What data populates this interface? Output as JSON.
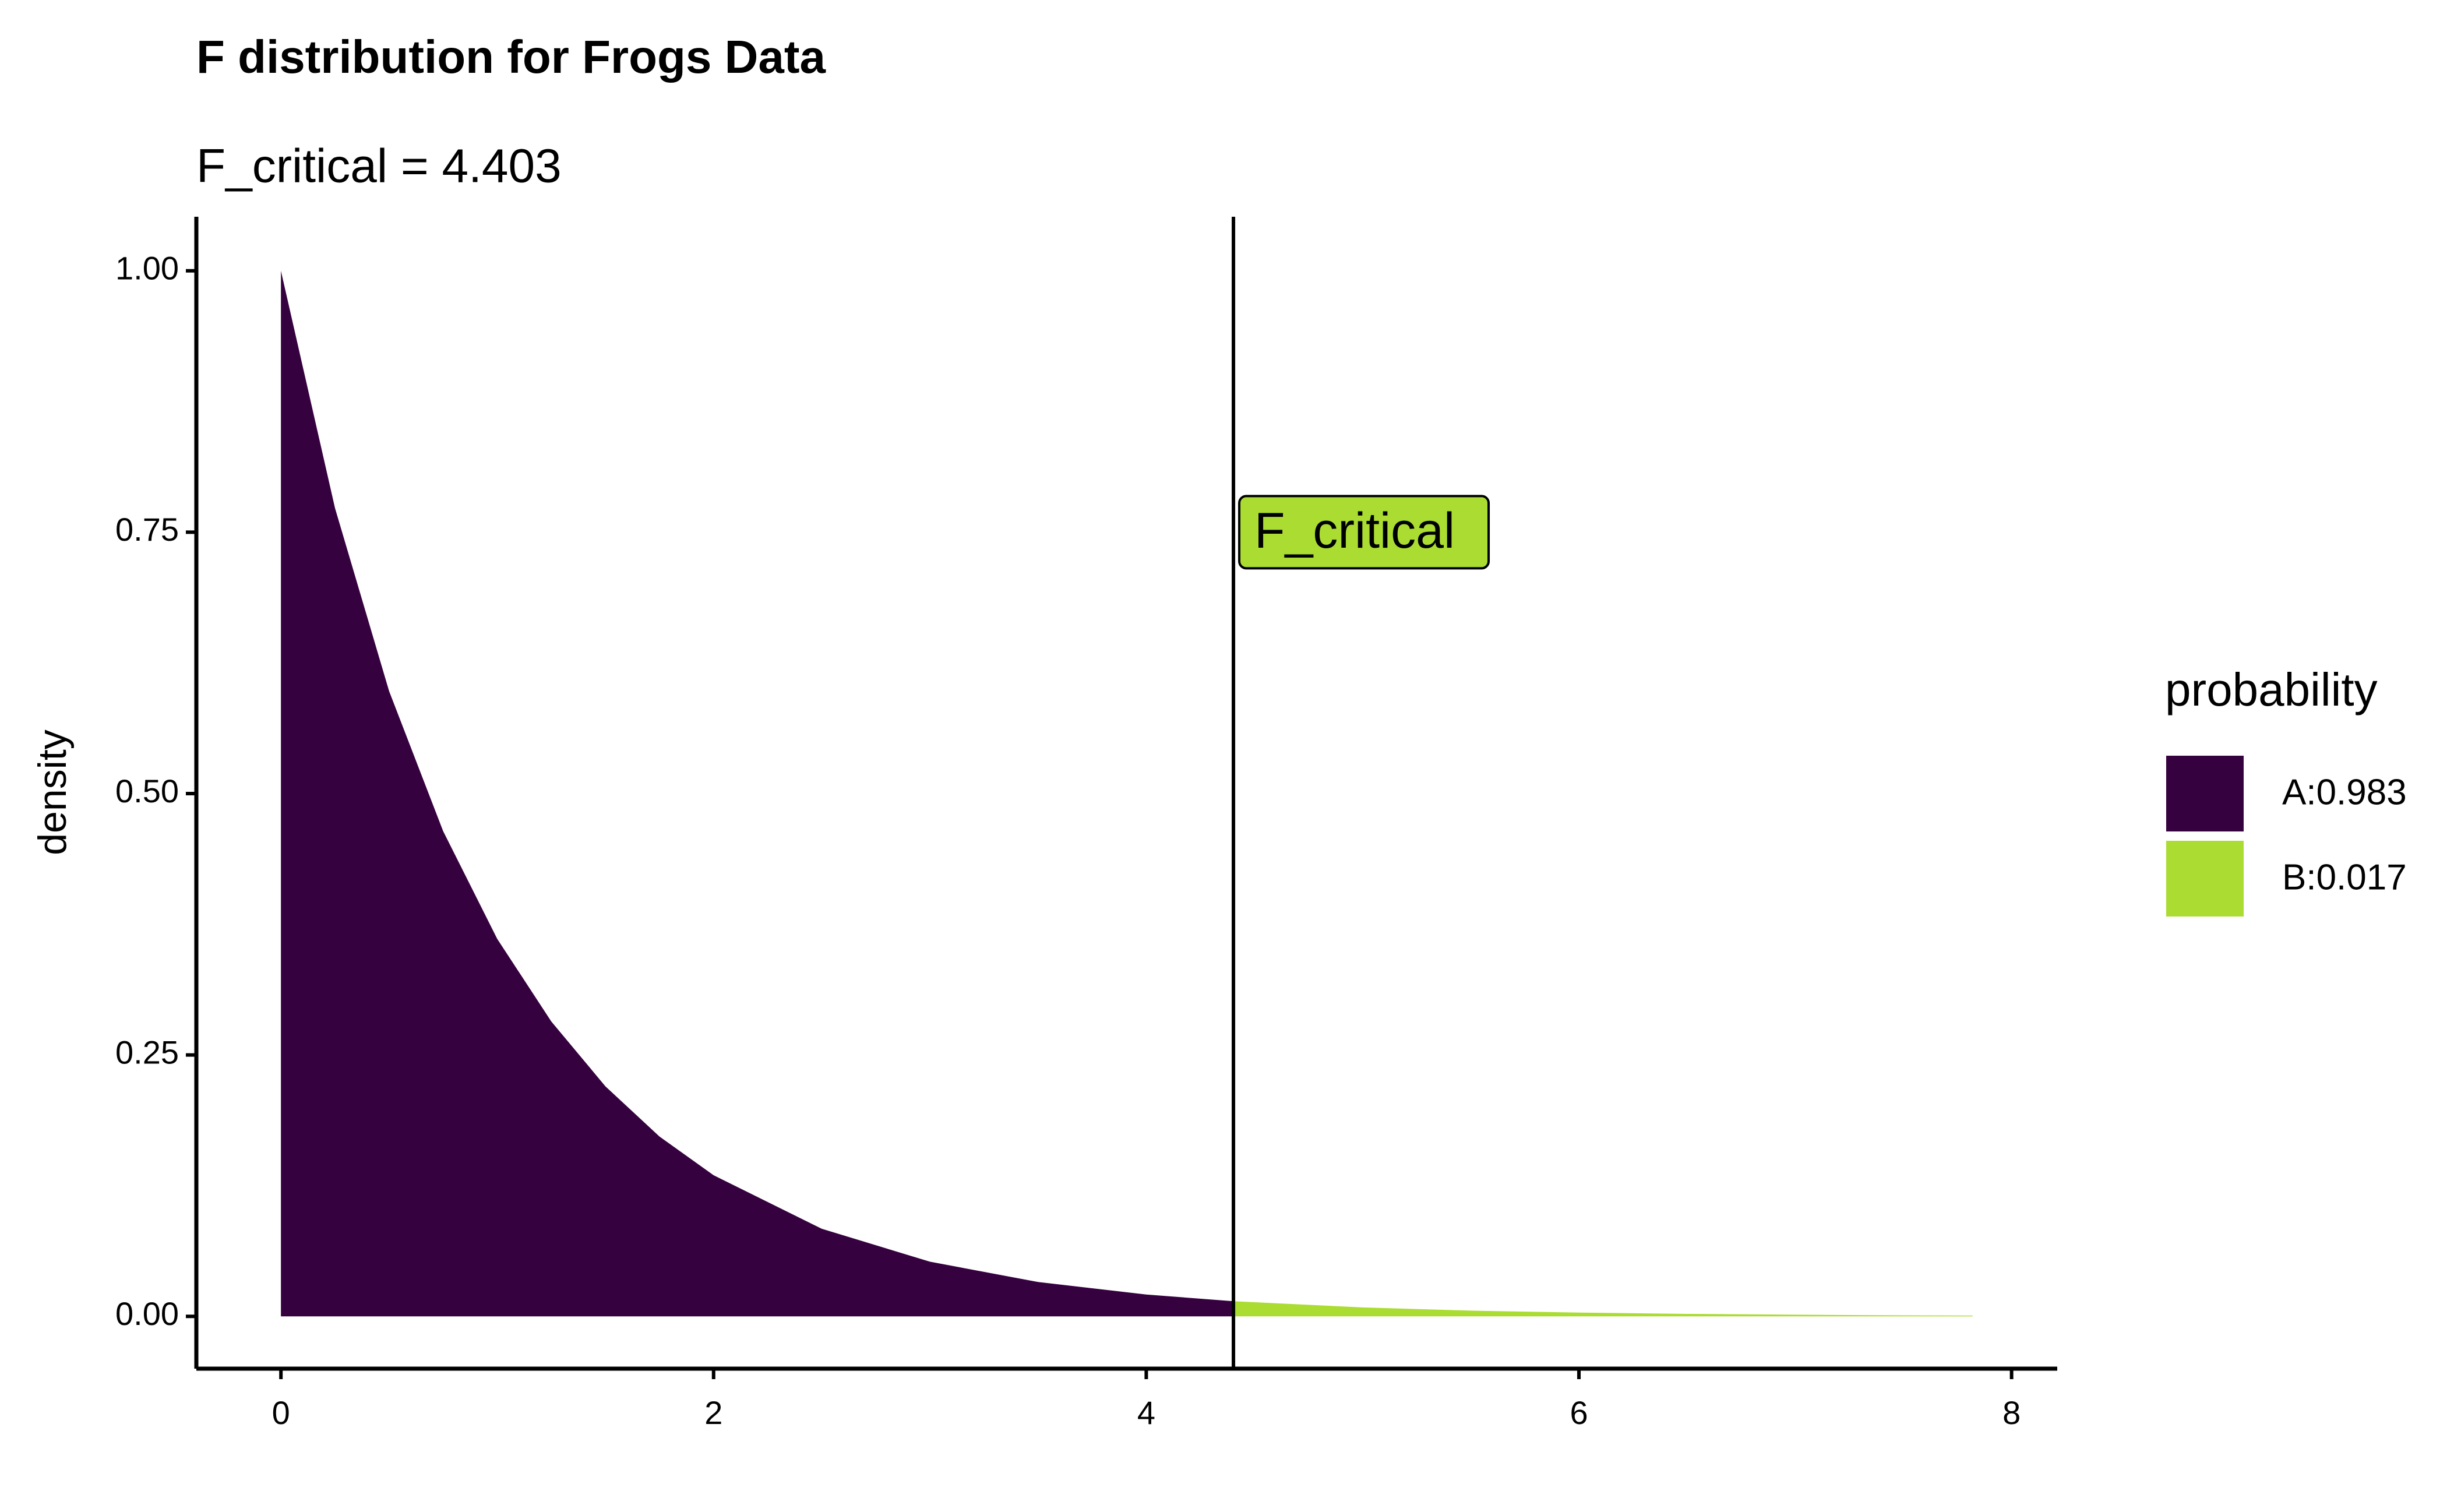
{
  "chart_data": {
    "type": "area",
    "title": "F distribution for Frogs Data",
    "subtitle": "F_critical = 4.403",
    "y_label": "density",
    "legend_title": "probability",
    "series": [
      {
        "name": "A:0.983",
        "color": "#36013f",
        "x": [
          0,
          0.25,
          0.5,
          0.75,
          1,
          1.25,
          1.5,
          1.75,
          2,
          2.5,
          3,
          3.5,
          4,
          4.403
        ],
        "values": [
          1,
          0.773,
          0.598,
          0.464,
          0.361,
          0.282,
          0.22,
          0.172,
          0.135,
          0.0838,
          0.0523,
          0.0329,
          0.0209,
          0.0145
        ]
      },
      {
        "name": "B:0.017",
        "color": "#aadc32",
        "x": [
          4.403,
          5,
          5.5,
          6,
          6.5,
          7,
          7.5,
          7.82
        ],
        "values": [
          0.0145,
          0.0086,
          0.0055,
          0.0036,
          0.0024,
          0.0016,
          0.001,
          0.0008
        ]
      }
    ],
    "vline": {
      "value": 4.403,
      "label": "F_critical",
      "label_y": 0.75,
      "color": "#aadc32"
    },
    "xlim": [
      -0.391,
      8.211
    ],
    "xticks": [
      0,
      2,
      4,
      6,
      8
    ],
    "ylim": [
      -0.05,
      1.05
    ],
    "yticks": [
      {
        "value": 0,
        "label": "0.00"
      },
      {
        "value": 0.25,
        "label": "0.25"
      },
      {
        "value": 0.5,
        "label": "0.50"
      },
      {
        "value": 0.75,
        "label": "0.75"
      },
      {
        "value": 1,
        "label": "1.00"
      }
    ],
    "grid": false
  }
}
